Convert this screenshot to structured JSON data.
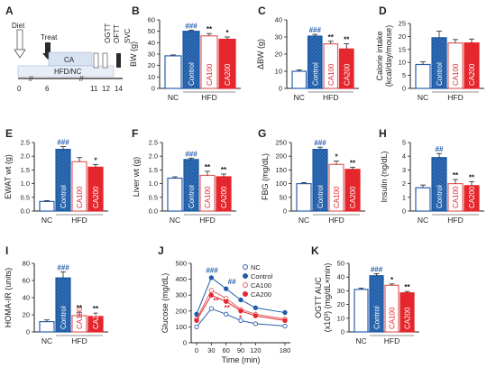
{
  "colors": {
    "NC": "#ffffff",
    "NC_stroke": "#2b5fae",
    "Control": "#1f5ca8",
    "CA100": "#ffffff",
    "CA100_stroke": "#e06060",
    "CA200": "#e5262d",
    "hatch": "#8ab0d8",
    "sig_blue": "#1f5ca8",
    "sig_black": "#111111"
  },
  "timeline": {
    "panel": "A",
    "labels": {
      "diet": "Diet",
      "treat": "Treat",
      "ca": "CA",
      "hfd_nc": "HFD/NC",
      "ogtt": "OGTT",
      "oftt": "OFTT",
      "svc": "SVC"
    },
    "ticks": [
      "0",
      "6",
      "11",
      "12",
      "14"
    ]
  },
  "chart_data": [
    {
      "panel": "B",
      "type": "bar",
      "ylabel": "BW (g)",
      "yticks": [
        "0",
        "10",
        "20",
        "30",
        "40",
        "50",
        "60"
      ],
      "ylim": [
        0,
        60
      ],
      "categories": [
        "NC",
        "Control",
        "CA100",
        "CA200"
      ],
      "values": [
        28.5,
        50,
        46,
        43
      ],
      "errors": [
        0.8,
        1.0,
        2.0,
        2.0
      ],
      "sig": [
        "",
        "###",
        "**",
        "*"
      ],
      "groups": [
        "NC",
        "HFD"
      ]
    },
    {
      "panel": "C",
      "type": "bar",
      "ylabel": "ΔBW (g)",
      "yticks": [
        "0",
        "10",
        "20",
        "30",
        "40"
      ],
      "ylim": [
        0,
        40
      ],
      "categories": [
        "NC",
        "Control",
        "CA100",
        "CA200"
      ],
      "values": [
        10,
        30.5,
        26,
        23
      ],
      "errors": [
        0.8,
        1.0,
        1.5,
        3.0
      ],
      "sig": [
        "",
        "###",
        "**",
        "**"
      ],
      "groups": [
        "NC",
        "HFD"
      ]
    },
    {
      "panel": "D",
      "type": "bar",
      "ylabel": "Calorie intake (kcal/day/mouse)",
      "yticks": [
        "0",
        "5",
        "10",
        "15",
        "20",
        "25"
      ],
      "ylim": [
        0,
        25
      ],
      "categories": [
        "NC",
        "Control",
        "CA100",
        "CA200"
      ],
      "values": [
        9.2,
        19.5,
        17.5,
        17.5
      ],
      "errors": [
        1.0,
        2.5,
        1.3,
        1.5
      ],
      "sig": [
        "",
        "",
        "",
        ""
      ],
      "groups": [
        "NC",
        "HFD"
      ]
    },
    {
      "panel": "E",
      "type": "bar",
      "ylabel": "EWAT wt (g)",
      "yticks": [
        "0.0",
        "0.5",
        "1.0",
        "1.5",
        "2.0",
        "2.5"
      ],
      "ylim": [
        0,
        2.5
      ],
      "categories": [
        "NC",
        "Control",
        "CA100",
        "CA200"
      ],
      "values": [
        0.35,
        2.25,
        1.8,
        1.6
      ],
      "errors": [
        0.03,
        0.1,
        0.15,
        0.1
      ],
      "sig": [
        "",
        "###",
        "",
        "*"
      ],
      "groups": [
        "NC",
        "HFD"
      ]
    },
    {
      "panel": "F",
      "type": "bar",
      "ylabel": "Liver wt (g)",
      "yticks": [
        "0.0",
        "0.5",
        "1.0",
        "1.5",
        "2.0",
        "2.5"
      ],
      "ylim": [
        0,
        2.5
      ],
      "categories": [
        "NC",
        "Control",
        "CA100",
        "CA200"
      ],
      "values": [
        1.2,
        1.88,
        1.3,
        1.25
      ],
      "errors": [
        0.05,
        0.05,
        0.15,
        0.1
      ],
      "sig": [
        "",
        "###",
        "**",
        "**"
      ],
      "groups": [
        "NC",
        "HFD"
      ]
    },
    {
      "panel": "G",
      "type": "bar",
      "ylabel": "FBG (mg/dL)",
      "yticks": [
        "0",
        "50",
        "100",
        "150",
        "200",
        "250"
      ],
      "ylim": [
        0,
        250
      ],
      "categories": [
        "NC",
        "Control",
        "CA100",
        "CA200"
      ],
      "values": [
        100,
        225,
        170,
        152
      ],
      "errors": [
        4,
        8,
        12,
        8
      ],
      "sig": [
        "",
        "###",
        "*",
        "**"
      ],
      "groups": [
        "NC",
        "HFD"
      ]
    },
    {
      "panel": "H",
      "type": "bar",
      "ylabel": "Insulin (ng/dL)",
      "yticks": [
        "0",
        "1",
        "2",
        "3",
        "4",
        "5"
      ],
      "ylim": [
        0,
        5
      ],
      "categories": [
        "NC",
        "Control",
        "CA100",
        "CA200"
      ],
      "values": [
        1.7,
        3.9,
        2.0,
        1.85
      ],
      "errors": [
        0.2,
        0.3,
        0.3,
        0.3
      ],
      "sig": [
        "",
        "##",
        "**",
        "**"
      ],
      "groups": [
        "NC",
        "HFD"
      ]
    },
    {
      "panel": "I",
      "type": "bar",
      "ylabel": "HOMA-IR (units)",
      "yticks": [
        "0",
        "20",
        "40",
        "60",
        "80"
      ],
      "ylim": [
        0,
        80
      ],
      "categories": [
        "NC",
        "Control",
        "CA100",
        "CA200"
      ],
      "values": [
        12,
        63,
        19,
        18
      ],
      "errors": [
        2,
        7,
        4,
        4
      ],
      "sig": [
        "",
        "###",
        "**",
        "**"
      ],
      "groups": [
        "NC",
        "HFD"
      ]
    },
    {
      "panel": "J",
      "type": "line",
      "ylabel": "Glucose (mg/dL)",
      "xlabel": "Time (min)",
      "x": [
        0,
        30,
        60,
        90,
        120,
        180
      ],
      "xticks": [
        "0",
        "30",
        "60",
        "90",
        "120",
        "180"
      ],
      "yticks": [
        "0",
        "100",
        "200",
        "300",
        "400",
        "500"
      ],
      "ylim": [
        0,
        500
      ],
      "series": [
        {
          "name": "NC",
          "values": [
            100,
            215,
            180,
            140,
            120,
            105
          ]
        },
        {
          "name": "Control",
          "values": [
            180,
            410,
            340,
            270,
            220,
            190
          ]
        },
        {
          "name": "CA100",
          "values": [
            150,
            330,
            280,
            210,
            180,
            150
          ]
        },
        {
          "name": "CA200",
          "values": [
            140,
            300,
            260,
            200,
            170,
            140
          ]
        }
      ],
      "sig_blue": [
        "###",
        "##"
      ],
      "sig_black": [
        "**",
        "**",
        "*"
      ]
    },
    {
      "panel": "K",
      "type": "bar",
      "ylabel": "OGTT AUC (x10³) (mg/dL×min)",
      "yticks": [
        "0",
        "10",
        "20",
        "30",
        "40",
        "50"
      ],
      "ylim": [
        0,
        50
      ],
      "categories": [
        "NC",
        "Control",
        "CA100",
        "CA200"
      ],
      "values": [
        31,
        41,
        34,
        28.5
      ],
      "errors": [
        1,
        1.5,
        1.0,
        1.0
      ],
      "sig": [
        "",
        "###",
        "*",
        "**"
      ],
      "groups": [
        "NC",
        "HFD"
      ]
    }
  ]
}
